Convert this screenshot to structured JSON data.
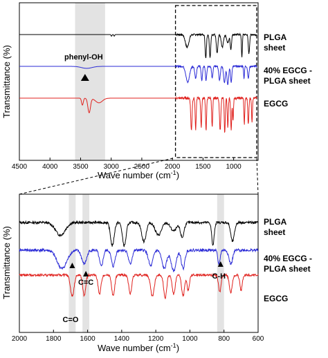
{
  "chart_data": [
    {
      "type": "line",
      "panel": "top",
      "xlabel": "Wave number (cm-1)",
      "xlabel_main": "Wave number (cm",
      "xlabel_sup": "-1",
      "xlabel_tail": ")",
      "ylabel": "Transmittance (%)",
      "xlim": [
        4500,
        600
      ],
      "xticks": [
        4500,
        4000,
        3500,
        3000,
        2500,
        2000,
        1500,
        1000
      ],
      "shaded_region": [
        3590,
        3100
      ],
      "zoom_box": [
        1950,
        600
      ],
      "series": [
        {
          "name": "PLGA sheet",
          "name_line1": "PLGA",
          "name_line2": "sheet",
          "color": "#000000",
          "baseline": 0.88,
          "features": [
            [
              1760,
              0.3,
              40
            ],
            [
              1455,
              0.55,
              15
            ],
            [
              1385,
              0.55,
              15
            ],
            [
              1270,
              0.45,
              18
            ],
            [
              1185,
              0.3,
              25
            ],
            [
              1095,
              0.2,
              25
            ],
            [
              1045,
              0.35,
              15
            ],
            [
              865,
              0.55,
              10
            ],
            [
              750,
              0.45,
              15
            ]
          ],
          "small_features": [
            [
              2995,
              0.04,
              10
            ],
            [
              2950,
              0.04,
              10
            ]
          ]
        },
        {
          "name": "40% EGCG - PLGA sheet",
          "name_line1": "40% EGCG -",
          "name_line2": "PLGA sheet",
          "color": "#2a2ad6",
          "baseline": 0.62,
          "features": [
            [
              1750,
              0.4,
              40
            ],
            [
              1620,
              0.3,
              20
            ],
            [
              1520,
              0.35,
              15
            ],
            [
              1450,
              0.35,
              15
            ],
            [
              1350,
              0.3,
              15
            ],
            [
              1230,
              0.35,
              18
            ],
            [
              1150,
              0.4,
              20
            ],
            [
              1095,
              0.45,
              20
            ],
            [
              1040,
              0.4,
              15
            ],
            [
              830,
              0.3,
              10
            ],
            [
              760,
              0.3,
              15
            ]
          ],
          "small_features": [
            [
              3400,
              0.05,
              120
            ]
          ]
        },
        {
          "name": "EGCG",
          "name_line1": "EGCG",
          "name_line2": "",
          "color": "#e0201c",
          "baseline": 0.38,
          "features": [
            [
              1690,
              0.55,
              15
            ],
            [
              1620,
              0.55,
              12
            ],
            [
              1530,
              0.5,
              12
            ],
            [
              1450,
              0.55,
              12
            ],
            [
              1350,
              0.5,
              12
            ],
            [
              1220,
              0.55,
              15
            ],
            [
              1145,
              0.6,
              12
            ],
            [
              1095,
              0.5,
              12
            ],
            [
              1040,
              0.55,
              12
            ],
            [
              1010,
              0.4,
              10
            ],
            [
              825,
              0.45,
              10
            ],
            [
              760,
              0.45,
              12
            ],
            [
              700,
              0.4,
              10
            ]
          ],
          "small_features": [
            [
              3470,
              0.12,
              20
            ],
            [
              3360,
              0.25,
              30
            ],
            [
              3200,
              0.08,
              80
            ]
          ]
        }
      ],
      "annotations": [
        {
          "label": "phenyl-OH",
          "x": 3360
        }
      ]
    },
    {
      "type": "line",
      "panel": "bottom",
      "xlabel": "Wave number (cm-1)",
      "ylabel": "Transmittance (%)",
      "xlim": [
        2000,
        600
      ],
      "xticks": [
        2000,
        1800,
        1600,
        1400,
        1200,
        1000,
        800,
        600
      ],
      "shaded_regions": [
        [
          1710,
          1670
        ],
        [
          1630,
          1590
        ],
        [
          840,
          800
        ]
      ],
      "annotations": [
        {
          "label": "C=O",
          "x": 1690
        },
        {
          "label": "C=C",
          "x": 1610
        },
        {
          "label": "C-H",
          "x": 820
        }
      ]
    }
  ]
}
